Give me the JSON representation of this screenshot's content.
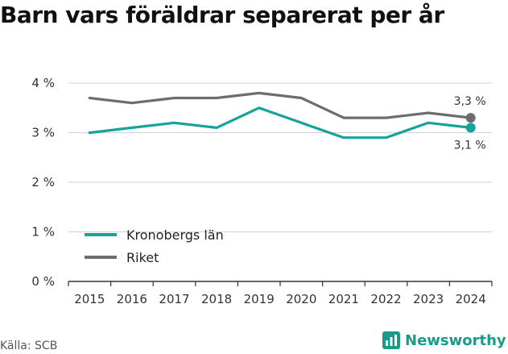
{
  "colors": {
    "series_primary": "#15a39a",
    "series_secondary": "#6d6d6d",
    "grid": "#d6d6d6",
    "axis": "#333333",
    "brand": "#1a9b8a"
  },
  "source": "Källa: SCB",
  "brand": {
    "name": "Newsworthy",
    "icon": "bar-chart-logo-icon"
  },
  "chart_data": {
    "type": "line",
    "title": "Barn vars föräldrar separerat per år",
    "xlabel": "",
    "ylabel": "",
    "categories": [
      "2015",
      "2016",
      "2017",
      "2018",
      "2019",
      "2020",
      "2021",
      "2022",
      "2023",
      "2024"
    ],
    "yticks": [
      0,
      1,
      2,
      3,
      4
    ],
    "ytick_labels": [
      "0 %",
      "1 %",
      "2 %",
      "3 %",
      "4 %"
    ],
    "ylim": [
      0,
      4.05
    ],
    "grid": true,
    "legend_position": "bottom-left",
    "series": [
      {
        "name": "Kronobergs län",
        "values": [
          3.0,
          3.1,
          3.2,
          3.1,
          3.5,
          3.2,
          2.9,
          2.9,
          3.2,
          3.1
        ],
        "end_label": "3,1 %"
      },
      {
        "name": "Riket",
        "values": [
          3.7,
          3.6,
          3.7,
          3.7,
          3.8,
          3.7,
          3.3,
          3.3,
          3.4,
          3.3
        ],
        "end_label": "3,3 %"
      }
    ]
  }
}
